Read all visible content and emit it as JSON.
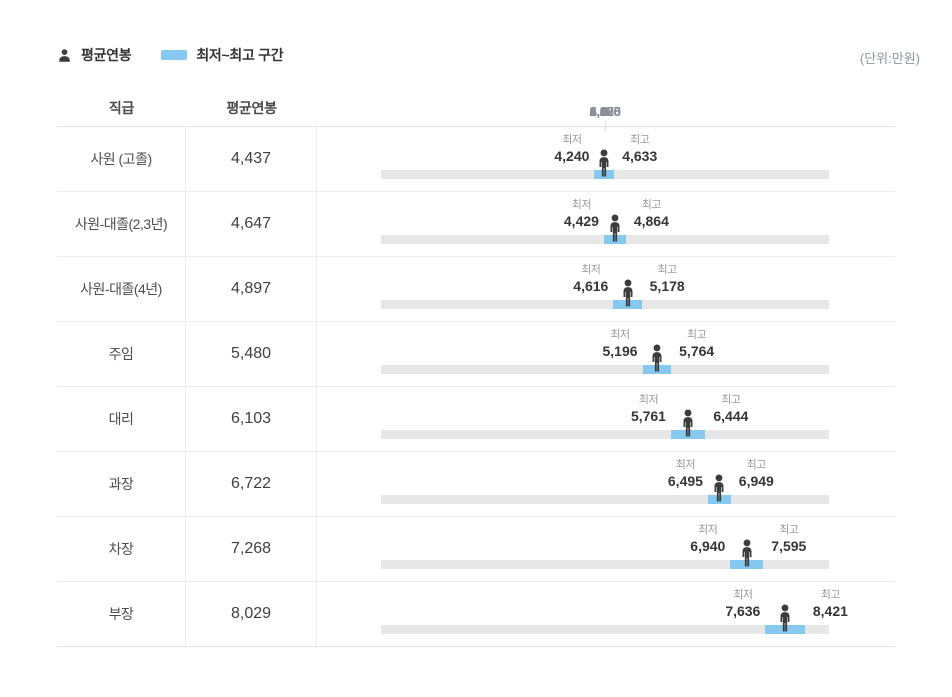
{
  "legend": {
    "avg_label": "평균연봉",
    "range_label": "최저~최고 구간",
    "unit_note": "(단위:만원)"
  },
  "table": {
    "col_grade": "직급",
    "col_avg": "평균연봉",
    "axis_ticks": [
      "0",
      "2,225",
      "4,450",
      "6,675",
      "8,900"
    ],
    "axis_max": 8900,
    "min_caption": "최저",
    "max_caption": "최고"
  },
  "rows": [
    {
      "grade": "사원 (고졸)",
      "avg": "4,437",
      "min": "4,240",
      "max": "4,633"
    },
    {
      "grade": "사원-대졸(2,3년)",
      "avg": "4,647",
      "min": "4,429",
      "max": "4,864"
    },
    {
      "grade": "사원-대졸(4년)",
      "avg": "4,897",
      "min": "4,616",
      "max": "5,178"
    },
    {
      "grade": "주임",
      "avg": "5,480",
      "min": "5,196",
      "max": "5,764"
    },
    {
      "grade": "대리",
      "avg": "6,103",
      "min": "5,761",
      "max": "6,444"
    },
    {
      "grade": "과장",
      "avg": "6,722",
      "min": "6,495",
      "max": "6,949"
    },
    {
      "grade": "차장",
      "avg": "7,268",
      "min": "6,940",
      "max": "7,595"
    },
    {
      "grade": "부장",
      "avg": "8,029",
      "min": "7,636",
      "max": "8,421"
    }
  ],
  "colors": {
    "range_blue": "#85c8f0",
    "track_gray": "#e7e7e7",
    "icon_dark": "#3c3c3c"
  },
  "chart_data": {
    "type": "bar",
    "subtype": "horizontal-range-with-marker",
    "categories": [
      "사원 (고졸)",
      "사원-대졸(2,3년)",
      "사원-대졸(4년)",
      "주임",
      "대리",
      "과장",
      "차장",
      "부장"
    ],
    "series": [
      {
        "name": "평균연봉",
        "values": [
          4437,
          4647,
          4897,
          5480,
          6103,
          6722,
          7268,
          8029
        ]
      },
      {
        "name": "최저",
        "values": [
          4240,
          4429,
          4616,
          5196,
          5761,
          6495,
          6940,
          7636
        ]
      },
      {
        "name": "최고",
        "values": [
          4633,
          4864,
          5178,
          5764,
          6444,
          6949,
          7595,
          8421
        ]
      }
    ],
    "xlim": [
      0,
      8900
    ],
    "x_ticks": [
      0,
      2225,
      4450,
      6675,
      8900
    ],
    "legend": [
      "평균연봉",
      "최저~최고 구간"
    ],
    "legend_position": "top-left",
    "unit": "(단위:만원)",
    "grid": false
  }
}
